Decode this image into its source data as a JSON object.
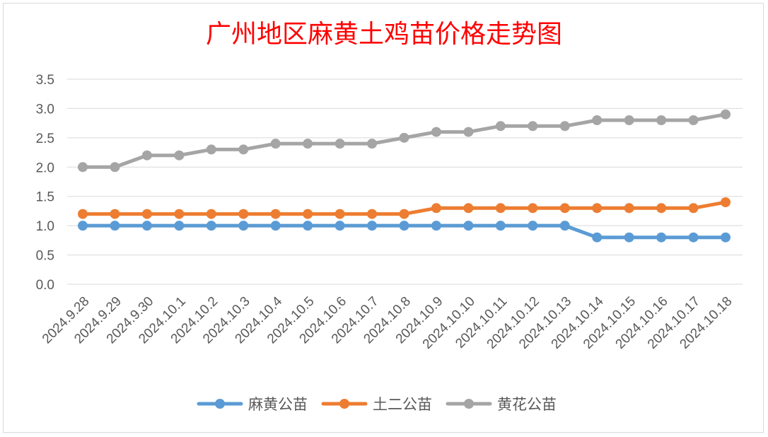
{
  "chart_data": {
    "type": "line",
    "title": "广州地区麻黄土鸡苗价格走势图",
    "xlabel": "",
    "ylabel": "",
    "ylim": [
      0,
      3.5
    ],
    "ytick_step": 0.5,
    "yticks": [
      "0.0",
      "0.5",
      "1.0",
      "1.5",
      "2.0",
      "2.5",
      "3.0",
      "3.5"
    ],
    "grid": true,
    "legend_position": "bottom",
    "categories": [
      "2024.9.28",
      "2024.9.29",
      "2024.9.30",
      "2024.10.1",
      "2024.10.2",
      "2024.10.3",
      "2024.10.4",
      "2024.10.5",
      "2024.10.6",
      "2024.10.7",
      "2024.10.8",
      "2024.10.9",
      "2024.10.10",
      "2024.10.11",
      "2024.10.12",
      "2024.10.13",
      "2024.10.14",
      "2024.10.15",
      "2024.10.16",
      "2024.10.17",
      "2024.10.18"
    ],
    "series": [
      {
        "name": "麻黄公苗",
        "color": "#5b9bd5",
        "values": [
          1.0,
          1.0,
          1.0,
          1.0,
          1.0,
          1.0,
          1.0,
          1.0,
          1.0,
          1.0,
          1.0,
          1.0,
          1.0,
          1.0,
          1.0,
          1.0,
          0.8,
          0.8,
          0.8,
          0.8,
          0.8
        ]
      },
      {
        "name": "土二公苗",
        "color": "#ed7d31",
        "values": [
          1.2,
          1.2,
          1.2,
          1.2,
          1.2,
          1.2,
          1.2,
          1.2,
          1.2,
          1.2,
          1.2,
          1.3,
          1.3,
          1.3,
          1.3,
          1.3,
          1.3,
          1.3,
          1.3,
          1.3,
          1.4
        ]
      },
      {
        "name": "黄花公苗",
        "color": "#a5a5a5",
        "values": [
          2.0,
          2.0,
          2.2,
          2.2,
          2.3,
          2.3,
          2.4,
          2.4,
          2.4,
          2.4,
          2.5,
          2.6,
          2.6,
          2.7,
          2.7,
          2.7,
          2.8,
          2.8,
          2.8,
          2.8,
          2.9
        ]
      }
    ]
  }
}
